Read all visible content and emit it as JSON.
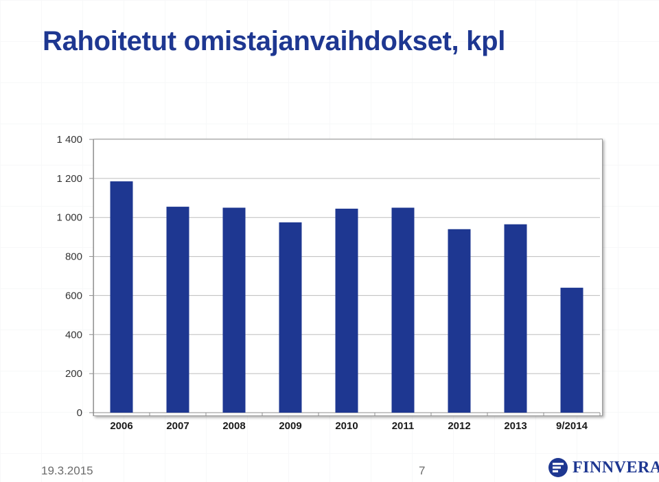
{
  "slide": {
    "title": "Rahoitetut omistajanvaihdokset, kpl",
    "date": "19.3.2015",
    "page_number": "7",
    "logo_text": "FINNVERA"
  },
  "colors": {
    "bar": "#1e3791",
    "title": "#1e3791",
    "grid": "#bdbdbd",
    "axis": "#8c8c8c"
  },
  "chart_data": {
    "type": "bar",
    "title": "",
    "xlabel": "",
    "ylabel": "",
    "categories": [
      "2006",
      "2007",
      "2008",
      "2009",
      "2010",
      "2011",
      "2012",
      "2013",
      "9/2014"
    ],
    "values": [
      1185,
      1055,
      1050,
      975,
      1045,
      1050,
      940,
      965,
      640
    ],
    "ylim": [
      0,
      1400
    ],
    "yticks": [
      0,
      200,
      400,
      600,
      800,
      1000,
      1200,
      1400
    ],
    "ytick_labels": [
      "0",
      "200",
      "400",
      "600",
      "800",
      "1 000",
      "1 200",
      "1 400"
    ],
    "grid": true,
    "legend": "none"
  }
}
